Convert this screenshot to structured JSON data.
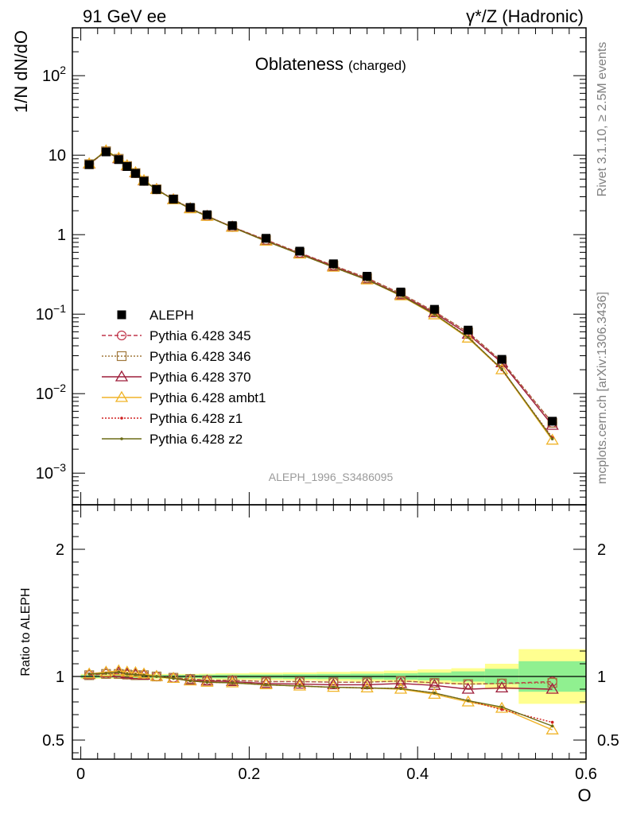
{
  "header": {
    "left_title": "91 GeV ee",
    "right_title": "γ*/Z (Hadronic)"
  },
  "side_labels": {
    "rivet": "Rivet 3.1.10, ≥ 2.5M events",
    "mcplots": "mcplots.cern.ch [arXiv:1306.3436]"
  },
  "chart_data": [
    {
      "type": "line",
      "title": "Oblateness",
      "subtitle": "(charged)",
      "ylabel": "1/N dN/dO",
      "xlabel": "",
      "reference_tag": "ALEPH_1996_S3486095",
      "yscale": "log",
      "xlim": [
        -0.01,
        0.6
      ],
      "ylim": [
        0.0004,
        400
      ],
      "ytick_values": [
        0.001,
        0.01,
        0.1,
        1,
        10,
        100
      ],
      "ytick_labels": [
        "10^-3",
        "10^-2",
        "10^-1",
        "1",
        "10",
        "10^2"
      ],
      "legend_position": "lower-left",
      "x": [
        0.01,
        0.03,
        0.045,
        0.055,
        0.065,
        0.075,
        0.09,
        0.11,
        0.13,
        0.15,
        0.18,
        0.22,
        0.26,
        0.3,
        0.34,
        0.38,
        0.42,
        0.46,
        0.5,
        0.56
      ],
      "series": [
        {
          "name": "ALEPH",
          "marker": "square-filled",
          "color": "#000000",
          "values": [
            7.6,
            11.0,
            8.8,
            7.2,
            5.9,
            4.7,
            3.7,
            2.8,
            2.2,
            1.78,
            1.3,
            0.9,
            0.62,
            0.43,
            0.3,
            0.19,
            0.115,
            0.063,
            0.027,
            0.0045
          ]
        },
        {
          "name": "Pythia 6.428 345",
          "marker": "circle-open",
          "dash": "5,3",
          "color": "#c0354a",
          "values": [
            7.7,
            11.2,
            9.0,
            7.3,
            5.95,
            4.75,
            3.72,
            2.78,
            2.15,
            1.72,
            1.25,
            0.86,
            0.59,
            0.41,
            0.285,
            0.182,
            0.108,
            0.059,
            0.0255,
            0.0043
          ]
        },
        {
          "name": "Pythia 6.428 346",
          "marker": "square-open",
          "dash": "2,2",
          "color": "#a0783c",
          "values": [
            7.7,
            11.2,
            9.0,
            7.3,
            5.95,
            4.75,
            3.72,
            2.78,
            2.15,
            1.72,
            1.25,
            0.86,
            0.59,
            0.41,
            0.285,
            0.182,
            0.108,
            0.059,
            0.0255,
            0.0043
          ]
        },
        {
          "name": "Pythia 6.428 370",
          "marker": "triangle-open",
          "dash": "",
          "color": "#9e1e3a",
          "values": [
            7.75,
            11.3,
            9.05,
            7.35,
            6.0,
            4.75,
            3.72,
            2.76,
            2.13,
            1.71,
            1.25,
            0.84,
            0.58,
            0.4,
            0.275,
            0.175,
            0.104,
            0.056,
            0.0245,
            0.004
          ]
        },
        {
          "name": "Pythia 6.428 ambt1",
          "marker": "triangle-open",
          "dash": "",
          "color": "#f0b428",
          "values": [
            7.8,
            11.4,
            9.2,
            7.4,
            6.05,
            4.8,
            3.7,
            2.75,
            2.12,
            1.7,
            1.24,
            0.83,
            0.57,
            0.39,
            0.27,
            0.17,
            0.098,
            0.05,
            0.02,
            0.0026
          ]
        },
        {
          "name": "Pythia 6.428 z1",
          "marker": "dot",
          "dash": "2,2",
          "color": "#d02020",
          "values": [
            7.8,
            11.3,
            9.1,
            7.35,
            6.0,
            4.75,
            3.7,
            2.75,
            2.12,
            1.7,
            1.24,
            0.83,
            0.57,
            0.39,
            0.27,
            0.172,
            0.1,
            0.052,
            0.02,
            0.0028
          ]
        },
        {
          "name": "Pythia 6.428 z2",
          "marker": "dot",
          "dash": "",
          "color": "#6b6b16",
          "values": [
            7.8,
            11.3,
            9.1,
            7.35,
            6.0,
            4.75,
            3.7,
            2.75,
            2.12,
            1.7,
            1.24,
            0.83,
            0.57,
            0.39,
            0.27,
            0.172,
            0.1,
            0.051,
            0.0205,
            0.0027
          ]
        }
      ]
    },
    {
      "type": "line",
      "title": "",
      "ylabel": "Ratio to ALEPH",
      "xlabel": "O",
      "xlim": [
        -0.01,
        0.6
      ],
      "ylim": [
        0.35,
        2.35
      ],
      "xtick_values": [
        0,
        0.2,
        0.4,
        0.6
      ],
      "xtick_labels": [
        "0",
        "0.2",
        "0.4",
        "0.6"
      ],
      "ytick_values": [
        0.5,
        1,
        2
      ],
      "ytick_labels": [
        "0.5",
        "1",
        "2"
      ],
      "uncertainty_bands": {
        "x_edges": [
          0.0,
          0.02,
          0.04,
          0.05,
          0.06,
          0.07,
          0.08,
          0.1,
          0.12,
          0.14,
          0.16,
          0.2,
          0.24,
          0.28,
          0.32,
          0.36,
          0.4,
          0.44,
          0.48,
          0.52,
          0.6
        ],
        "stat_halfwidth": [
          0.012,
          0.01,
          0.012,
          0.012,
          0.012,
          0.012,
          0.012,
          0.012,
          0.012,
          0.014,
          0.015,
          0.016,
          0.018,
          0.02,
          0.022,
          0.025,
          0.03,
          0.04,
          0.06,
          0.12
        ],
        "total_halfwidth": [
          0.02,
          0.018,
          0.02,
          0.02,
          0.02,
          0.02,
          0.02,
          0.02,
          0.02,
          0.022,
          0.026,
          0.03,
          0.032,
          0.036,
          0.04,
          0.046,
          0.056,
          0.065,
          0.1,
          0.215
        ],
        "stat_color": "#90f090",
        "total_color": "#ffff90"
      },
      "series": [
        {
          "name": "Pythia 6.428 345",
          "values": [
            1.01,
            1.02,
            1.02,
            1.015,
            1.01,
            1.01,
            1.0,
            0.99,
            0.98,
            0.97,
            0.97,
            0.96,
            0.96,
            0.955,
            0.955,
            0.965,
            0.95,
            0.94,
            0.945,
            0.96
          ]
        },
        {
          "name": "Pythia 6.428 346",
          "values": [
            1.01,
            1.02,
            1.02,
            1.015,
            1.01,
            1.01,
            1.0,
            0.99,
            0.98,
            0.97,
            0.97,
            0.96,
            0.96,
            0.955,
            0.955,
            0.965,
            0.95,
            0.94,
            0.945,
            0.95
          ]
        },
        {
          "name": "Pythia 6.428 370",
          "values": [
            1.015,
            1.03,
            1.03,
            1.02,
            1.015,
            1.01,
            1.0,
            0.985,
            0.97,
            0.965,
            0.96,
            0.945,
            0.94,
            0.935,
            0.935,
            0.945,
            0.93,
            0.9,
            0.91,
            0.9
          ]
        },
        {
          "name": "Pythia 6.428 ambt1",
          "values": [
            1.02,
            1.035,
            1.045,
            1.035,
            1.03,
            1.02,
            1.0,
            0.985,
            0.965,
            0.955,
            0.95,
            0.935,
            0.925,
            0.915,
            0.91,
            0.9,
            0.86,
            0.8,
            0.75,
            0.58
          ]
        },
        {
          "name": "Pythia 6.428 z1",
          "values": [
            1.02,
            1.025,
            1.035,
            1.02,
            1.015,
            1.01,
            1.0,
            0.985,
            0.965,
            0.955,
            0.95,
            0.935,
            0.925,
            0.915,
            0.91,
            0.905,
            0.87,
            0.81,
            0.74,
            0.64
          ]
        },
        {
          "name": "Pythia 6.428 z2",
          "values": [
            1.02,
            1.025,
            1.035,
            1.02,
            1.015,
            1.01,
            1.0,
            0.985,
            0.965,
            0.955,
            0.95,
            0.935,
            0.925,
            0.915,
            0.91,
            0.905,
            0.87,
            0.81,
            0.76,
            0.61
          ]
        }
      ]
    }
  ]
}
